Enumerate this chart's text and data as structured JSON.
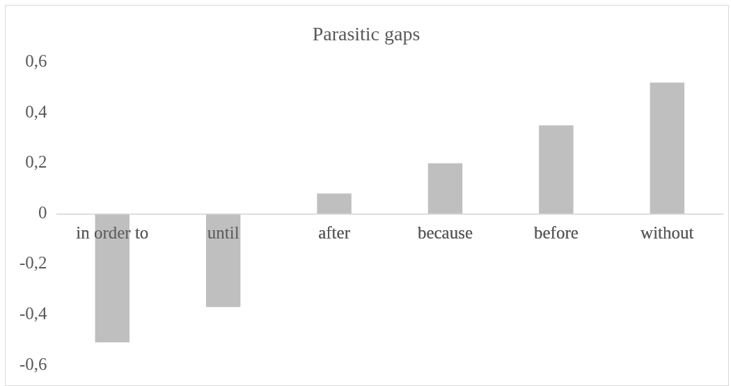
{
  "chart_data": {
    "type": "bar",
    "title": "Parasitic gaps",
    "categories": [
      "in order to",
      "until",
      "after",
      "because",
      "before",
      "without"
    ],
    "values": [
      -0.51,
      -0.37,
      0.08,
      0.2,
      0.35,
      0.52
    ],
    "color": "#bfbfbf",
    "ylim": [
      -0.6,
      0.6
    ],
    "yticks": [
      {
        "value": 0.6,
        "label": "0,6"
      },
      {
        "value": 0.4,
        "label": "0,4"
      },
      {
        "value": 0.2,
        "label": "0,2"
      },
      {
        "value": 0,
        "label": "0"
      },
      {
        "value": -0.2,
        "label": "-0,2"
      },
      {
        "value": -0.4,
        "label": "-0,4"
      },
      {
        "value": -0.6,
        "label": "-0,6"
      }
    ],
    "grid": false,
    "legend": false
  }
}
